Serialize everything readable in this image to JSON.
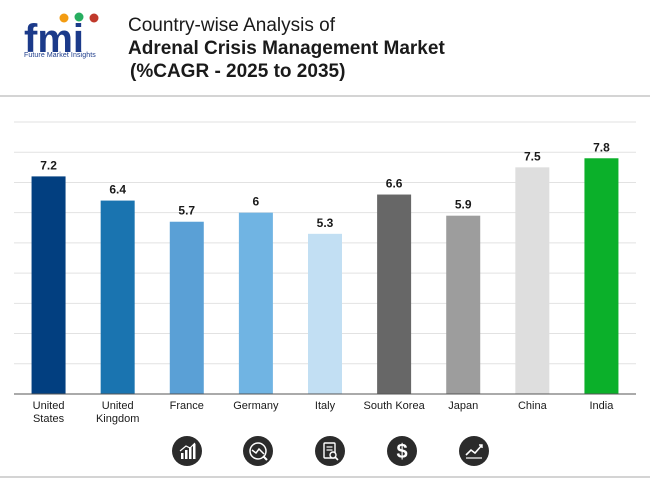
{
  "header": {
    "logo_text": "fmi",
    "logo_subtitle": "Future Market Insights",
    "title_line1": "Country-wise Analysis of",
    "title_line2": "Adrenal Crisis Management Market",
    "title_line3": "(%CAGR - 2025 to 2035)"
  },
  "chart_data": {
    "type": "bar",
    "title": "Country-wise Analysis of Adrenal Crisis Management Market (%CAGR - 2025 to 2035)",
    "xlabel": "",
    "ylabel": "",
    "ylim": [
      0,
      9
    ],
    "grid": true,
    "categories": [
      [
        "United",
        "States"
      ],
      [
        "United",
        "Kingdom"
      ],
      [
        "France"
      ],
      [
        "Germany"
      ],
      [
        "Italy"
      ],
      [
        "South Korea"
      ],
      [
        "Japan"
      ],
      [
        "China"
      ],
      [
        "India"
      ]
    ],
    "values": [
      7.2,
      6.4,
      5.7,
      6,
      5.3,
      6.6,
      5.9,
      7.5,
      7.8
    ],
    "value_labels": [
      "7.2",
      "6.4",
      "5.7",
      "6",
      "5.3",
      "6.6",
      "5.9",
      "7.5",
      "7.8"
    ],
    "colors": [
      "#023f80",
      "#1a74b0",
      "#5aa0d6",
      "#70b4e3",
      "#c2dff3",
      "#676767",
      "#9d9d9d",
      "#dedede",
      "#0bb02a"
    ]
  },
  "icons": [
    "bar-chart-icon",
    "trend-globe-icon",
    "document-search-icon",
    "dollar-icon",
    "line-chart-icon"
  ],
  "colors": {
    "logo_blue": "#1b3a8a",
    "grid": "#e2e2e2",
    "axis": "#555555",
    "icon_bg": "#2b2b2b"
  }
}
